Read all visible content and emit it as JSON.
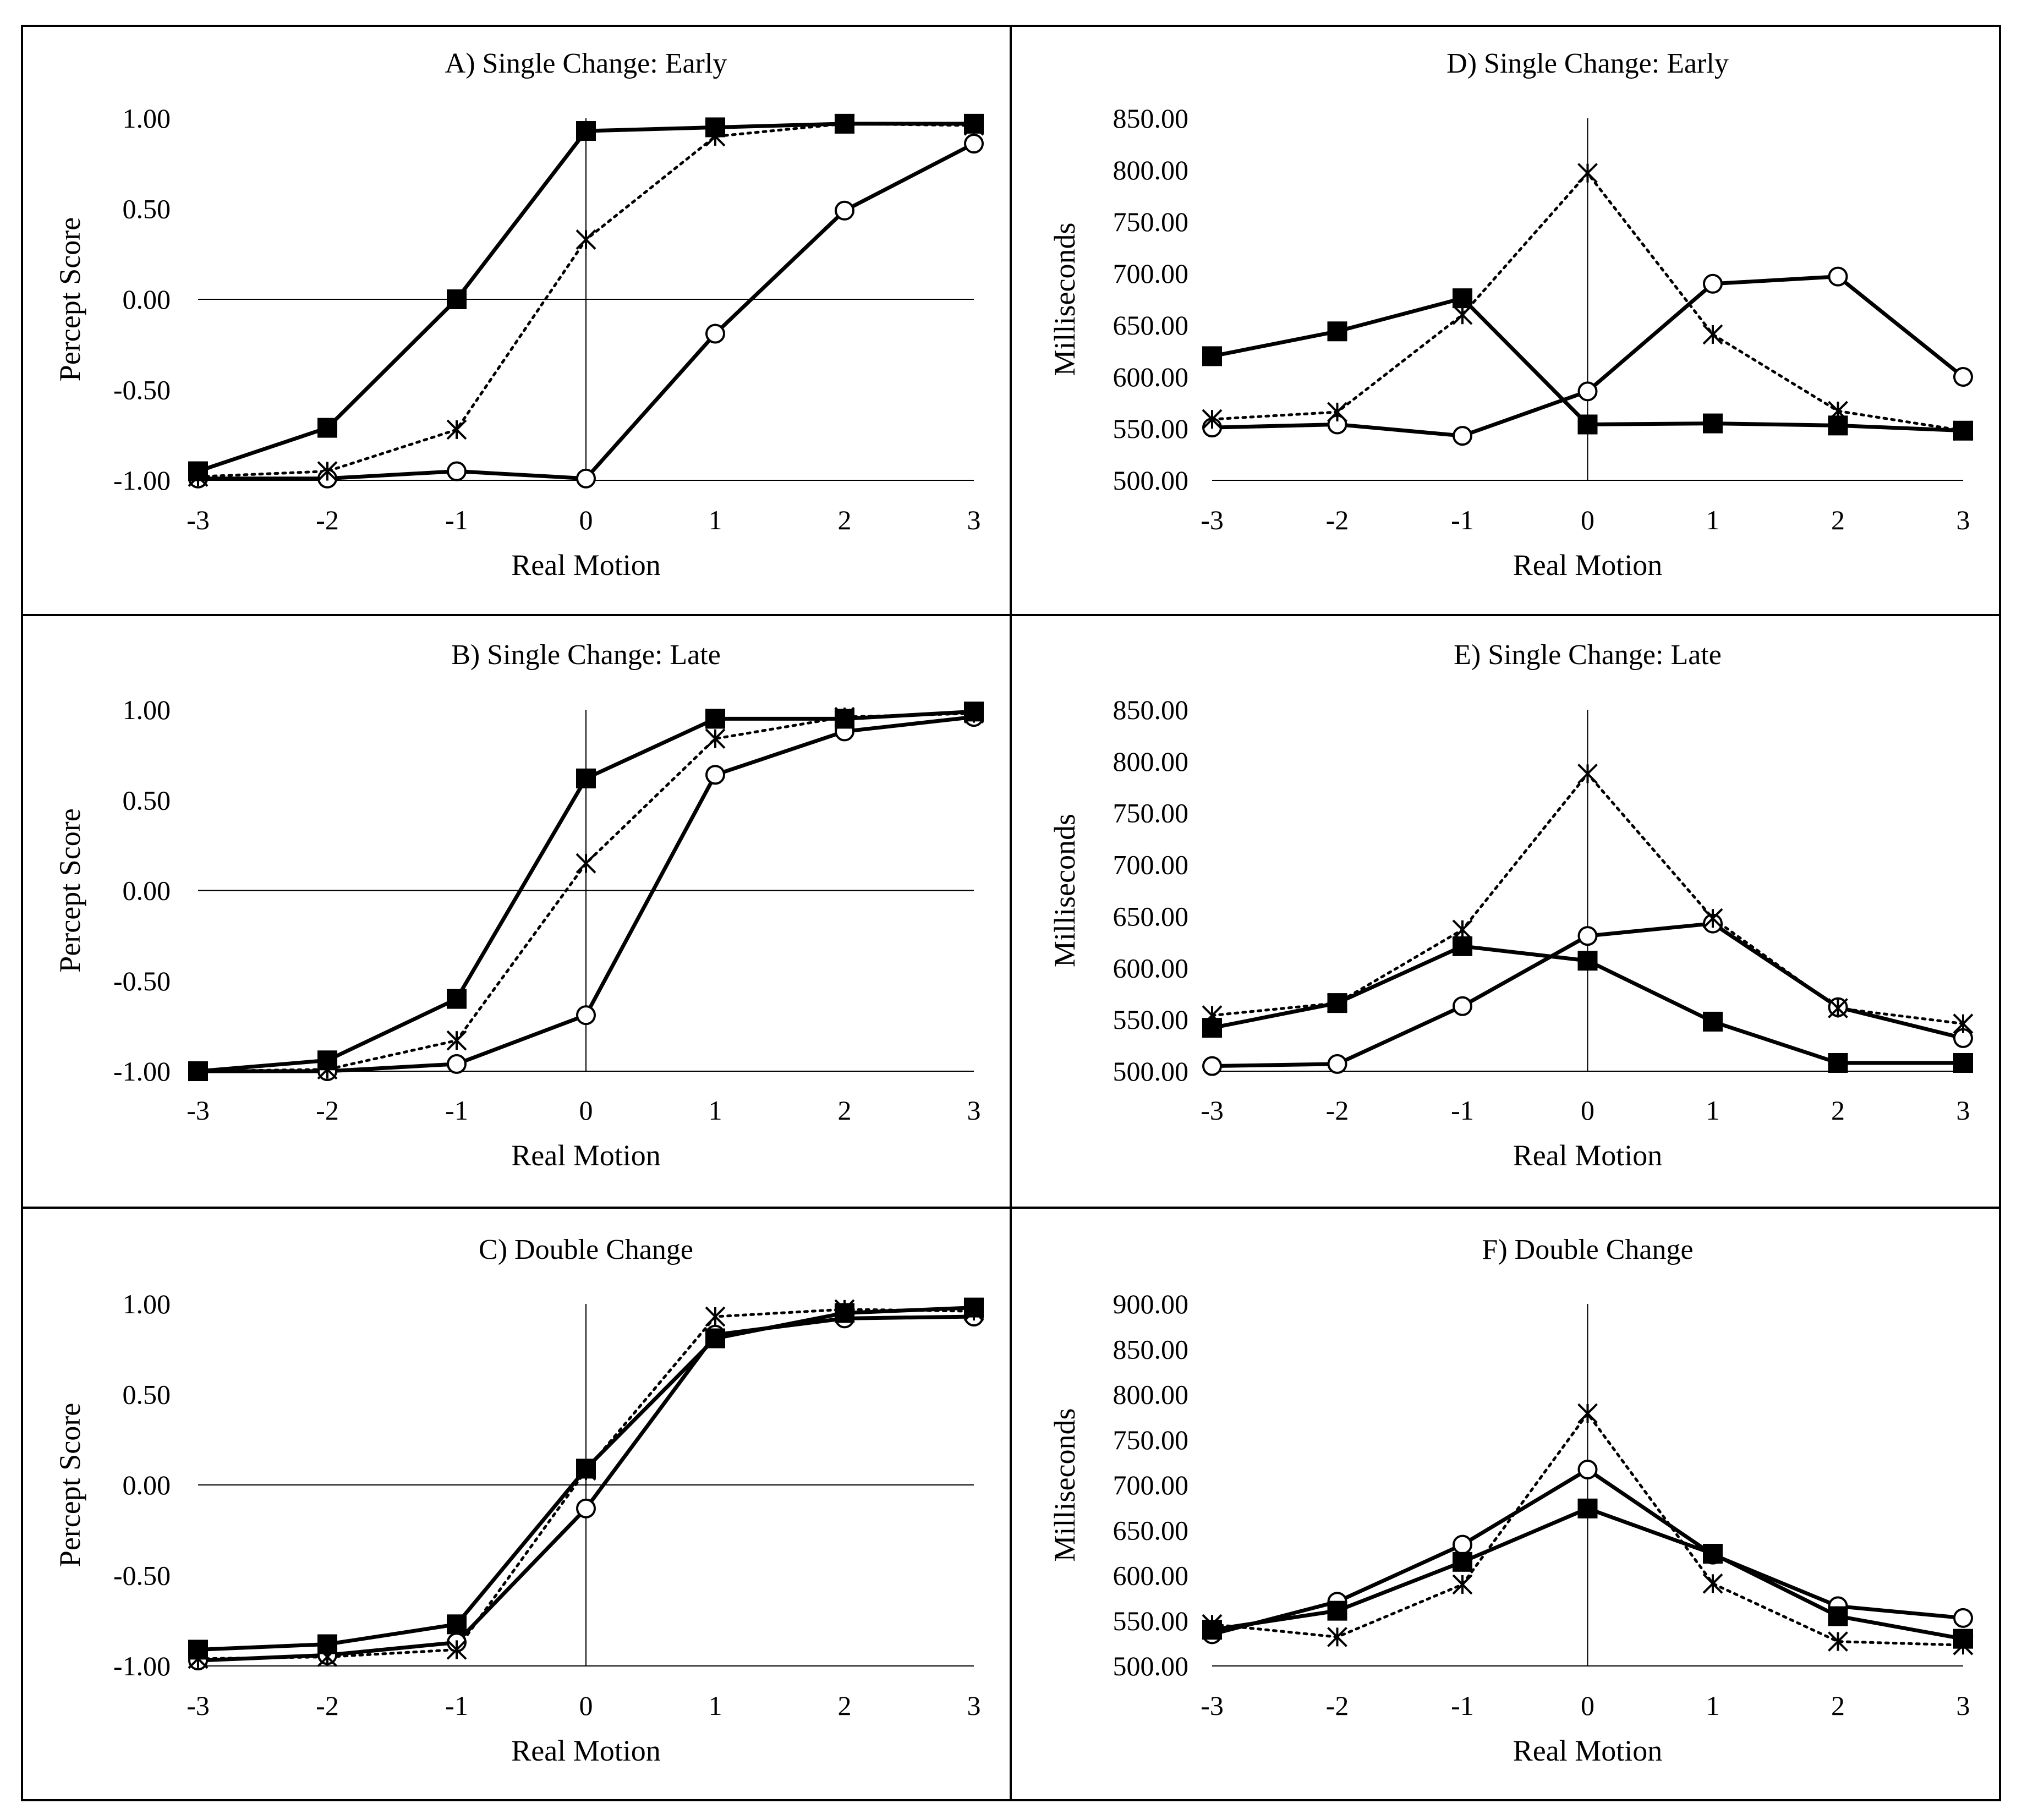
{
  "chart_data": [
    {
      "id": "A",
      "type": "line",
      "title": "A) Single Change: Early",
      "xlabel": "Real Motion",
      "ylabel": "Percept Score",
      "x": [
        -3,
        -2,
        -1,
        0,
        1,
        2,
        3
      ],
      "xticks": [
        "-3",
        "-2",
        "-1",
        "0",
        "1",
        "2",
        "3"
      ],
      "ylim": [
        -1.0,
        1.0
      ],
      "yticks": [
        -1.0,
        -0.5,
        0.0,
        0.5,
        1.0
      ],
      "ytick_labels": [
        "-1.00",
        "-0.50",
        "0.00",
        "0.50",
        "1.00"
      ],
      "series": [
        {
          "name": "square",
          "marker": "square",
          "dash": "solid",
          "values": [
            -0.95,
            -0.71,
            0.0,
            0.93,
            0.95,
            0.97,
            0.97
          ]
        },
        {
          "name": "cross",
          "marker": "cross",
          "dash": "dotted",
          "values": [
            -0.98,
            -0.95,
            -0.72,
            0.33,
            0.9,
            0.97,
            0.96
          ]
        },
        {
          "name": "circle",
          "marker": "circle",
          "dash": "solid",
          "values": [
            -0.99,
            -0.99,
            -0.95,
            -0.99,
            -0.19,
            0.49,
            0.86
          ]
        }
      ]
    },
    {
      "id": "B",
      "type": "line",
      "title": "B) Single Change: Late",
      "xlabel": "Real Motion",
      "ylabel": "Percept Score",
      "x": [
        -3,
        -2,
        -1,
        0,
        1,
        2,
        3
      ],
      "xticks": [
        "-3",
        "-2",
        "-1",
        "0",
        "1",
        "2",
        "3"
      ],
      "ylim": [
        -1.0,
        1.0
      ],
      "yticks": [
        -1.0,
        -0.5,
        0.0,
        0.5,
        1.0
      ],
      "ytick_labels": [
        "-1.00",
        "-0.50",
        "0.00",
        "0.50",
        "1.00"
      ],
      "series": [
        {
          "name": "square",
          "marker": "square",
          "dash": "solid",
          "values": [
            -1.0,
            -0.94,
            -0.6,
            0.62,
            0.95,
            0.95,
            0.99
          ]
        },
        {
          "name": "cross",
          "marker": "cross",
          "dash": "dotted",
          "values": [
            -1.0,
            -0.99,
            -0.83,
            0.15,
            0.84,
            0.96,
            0.98
          ]
        },
        {
          "name": "circle",
          "marker": "circle",
          "dash": "solid",
          "values": [
            -1.0,
            -1.0,
            -0.96,
            -0.69,
            0.64,
            0.88,
            0.96
          ]
        }
      ]
    },
    {
      "id": "C",
      "type": "line",
      "title": "C) Double Change",
      "xlabel": "Real Motion",
      "ylabel": "Percept Score",
      "x": [
        -3,
        -2,
        -1,
        0,
        1,
        2,
        3
      ],
      "xticks": [
        "-3",
        "-2",
        "-1",
        "0",
        "1",
        "2",
        "3"
      ],
      "ylim": [
        -1.0,
        1.0
      ],
      "yticks": [
        -1.0,
        -0.5,
        0.0,
        0.5,
        1.0
      ],
      "ytick_labels": [
        "-1.00",
        "-0.50",
        "0.00",
        "0.50",
        "1.00"
      ],
      "series": [
        {
          "name": "square",
          "marker": "square",
          "dash": "solid",
          "values": [
            -0.91,
            -0.88,
            -0.77,
            0.09,
            0.81,
            0.95,
            0.98
          ]
        },
        {
          "name": "cross",
          "marker": "cross",
          "dash": "dotted",
          "values": [
            -0.96,
            -0.95,
            -0.91,
            0.08,
            0.93,
            0.97,
            0.96
          ]
        },
        {
          "name": "circle",
          "marker": "circle",
          "dash": "solid",
          "values": [
            -0.97,
            -0.94,
            -0.87,
            -0.13,
            0.83,
            0.92,
            0.93
          ]
        }
      ]
    },
    {
      "id": "D",
      "type": "line",
      "title": "D) Single Change: Early",
      "xlabel": "Real Motion",
      "ylabel": "Milliseconds",
      "x": [
        -3,
        -2,
        -1,
        0,
        1,
        2,
        3
      ],
      "xticks": [
        "-3",
        "-2",
        "-1",
        "0",
        "1",
        "2",
        "3"
      ],
      "ylim": [
        500,
        850
      ],
      "yticks": [
        500,
        550,
        600,
        650,
        700,
        750,
        800,
        850
      ],
      "ytick_labels": [
        "500.00",
        "550.00",
        "600.00",
        "650.00",
        "700.00",
        "750.00",
        "800.00",
        "850.00"
      ],
      "series": [
        {
          "name": "square",
          "marker": "square",
          "dash": "solid",
          "values": [
            620,
            644,
            676,
            554,
            555,
            553,
            548
          ]
        },
        {
          "name": "cross",
          "marker": "cross",
          "dash": "dotted",
          "values": [
            559,
            566,
            660,
            797,
            641,
            567,
            548
          ]
        },
        {
          "name": "circle",
          "marker": "circle",
          "dash": "solid",
          "values": [
            551,
            554,
            543,
            586,
            690,
            697,
            600
          ]
        }
      ]
    },
    {
      "id": "E",
      "type": "line",
      "title": "E) Single Change: Late",
      "xlabel": "Real Motion",
      "ylabel": "Milliseconds",
      "x": [
        -3,
        -2,
        -1,
        0,
        1,
        2,
        3
      ],
      "xticks": [
        "-3",
        "-2",
        "-1",
        "0",
        "1",
        "2",
        "3"
      ],
      "ylim": [
        500,
        850
      ],
      "yticks": [
        500,
        550,
        600,
        650,
        700,
        750,
        800,
        850
      ],
      "ytick_labels": [
        "500.00",
        "550.00",
        "600.00",
        "650.00",
        "700.00",
        "750.00",
        "800.00",
        "850.00"
      ],
      "series": [
        {
          "name": "square",
          "marker": "square",
          "dash": "solid",
          "values": [
            542,
            566,
            621,
            607,
            548,
            508,
            508
          ]
        },
        {
          "name": "cross",
          "marker": "cross",
          "dash": "dotted",
          "values": [
            554,
            566,
            637,
            788,
            648,
            561,
            546
          ]
        },
        {
          "name": "circle",
          "marker": "circle",
          "dash": "solid",
          "values": [
            505,
            507,
            563,
            631,
            643,
            562,
            532
          ]
        }
      ]
    },
    {
      "id": "F",
      "type": "line",
      "title": "F) Double Change",
      "xlabel": "Real Motion",
      "ylabel": "Milliseconds",
      "x": [
        -3,
        -2,
        -1,
        0,
        1,
        2,
        3
      ],
      "xticks": [
        "-3",
        "-2",
        "-1",
        "0",
        "1",
        "2",
        "3"
      ],
      "ylim": [
        500,
        900
      ],
      "yticks": [
        500,
        550,
        600,
        650,
        700,
        750,
        800,
        850,
        900
      ],
      "ytick_labels": [
        "500.00",
        "550.00",
        "600.00",
        "650.00",
        "700.00",
        "750.00",
        "800.00",
        "850.00",
        "900.00"
      ],
      "series": [
        {
          "name": "square",
          "marker": "square",
          "dash": "solid",
          "values": [
            540,
            561,
            615,
            674,
            624,
            555,
            530
          ]
        },
        {
          "name": "cross",
          "marker": "cross",
          "dash": "dotted",
          "values": [
            546,
            532,
            590,
            779,
            591,
            527,
            523
          ]
        },
        {
          "name": "circle",
          "marker": "circle",
          "dash": "solid",
          "values": [
            535,
            571,
            634,
            717,
            623,
            566,
            553
          ]
        }
      ]
    }
  ]
}
